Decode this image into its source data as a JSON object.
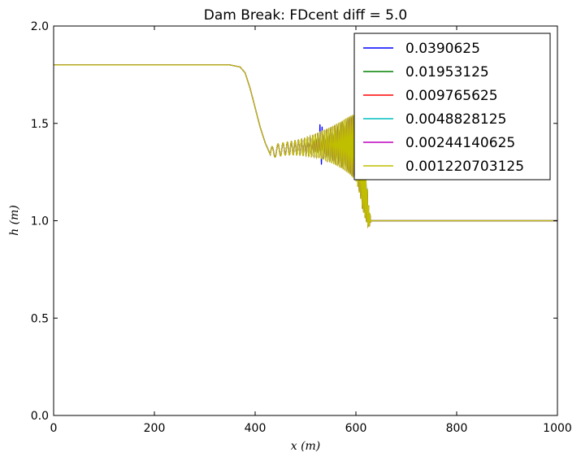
{
  "chart_data": {
    "type": "line",
    "title": "Dam Break: FDcent diff = 5.0",
    "xlabel": "x (m)",
    "ylabel": "h (m)",
    "xlim": [
      0,
      1000
    ],
    "ylim": [
      0.0,
      2.0
    ],
    "xticks": [
      0,
      200,
      400,
      600,
      800,
      1000
    ],
    "xtick_labels": [
      "0",
      "200",
      "400",
      "600",
      "800",
      "1000"
    ],
    "yticks": [
      0.0,
      0.5,
      1.0,
      1.5,
      2.0
    ],
    "ytick_labels": [
      "0.0",
      "0.5",
      "1.0",
      "1.5",
      "2.0"
    ],
    "grid": false,
    "legend_position": "top-right",
    "profile": {
      "x": [
        0,
        350,
        370,
        380,
        390,
        400,
        410,
        420,
        430,
        440,
        460,
        480,
        500,
        520,
        530,
        540,
        560,
        580,
        600,
        610,
        620,
        625,
        630,
        700,
        800,
        900,
        1000
      ],
      "h": [
        1.8,
        1.8,
        1.79,
        1.76,
        1.68,
        1.58,
        1.48,
        1.4,
        1.34,
        1.36,
        1.37,
        1.375,
        1.38,
        1.385,
        1.39,
        1.39,
        1.39,
        1.39,
        1.38,
        1.3,
        1.12,
        1.02,
        1.0,
        1.0,
        1.0,
        1.0,
        1.0
      ]
    },
    "series": [
      {
        "name": "0.0390625",
        "color": "#0000ff"
      },
      {
        "name": "0.01953125",
        "color": "#008000"
      },
      {
        "name": "0.009765625",
        "color": "#ff0000"
      },
      {
        "name": "0.0048828125",
        "color": "#00bfbf"
      },
      {
        "name": "0.00244140625",
        "color": "#bf00bf"
      },
      {
        "name": "0.001220703125",
        "color": "#bfbf00"
      }
    ]
  }
}
